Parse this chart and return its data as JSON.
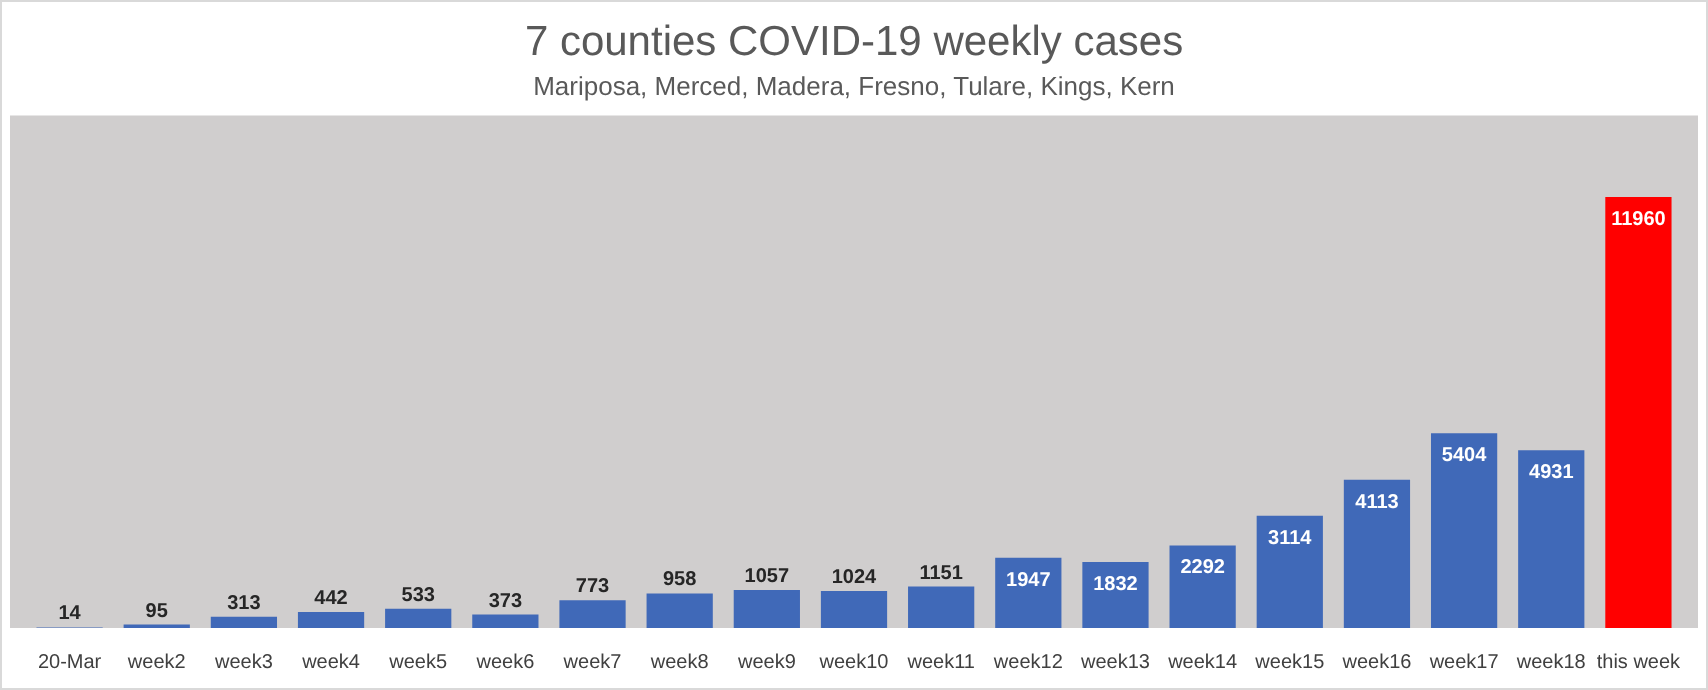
{
  "chart_data": {
    "type": "bar",
    "title": "7 counties COVID-19 weekly cases",
    "subtitle": "Mariposa, Merced, Madera, Fresno, Tulare, Kings, Kern",
    "categories": [
      "20-Mar",
      "week2",
      "week3",
      "week4",
      "week5",
      "week6",
      "week7",
      "week8",
      "week9",
      "week10",
      "week11",
      "week12",
      "week13",
      "week14",
      "week15",
      "week16",
      "week17",
      "week18",
      "this week"
    ],
    "values": [
      14,
      95,
      313,
      442,
      533,
      373,
      773,
      958,
      1057,
      1024,
      1151,
      1947,
      1832,
      2292,
      3114,
      4113,
      5404,
      4931,
      11960
    ],
    "colors": [
      "#4069b8",
      "#4069b8",
      "#4069b8",
      "#4069b8",
      "#4069b8",
      "#4069b8",
      "#4069b8",
      "#4069b8",
      "#4069b8",
      "#4069b8",
      "#4069b8",
      "#4069b8",
      "#4069b8",
      "#4069b8",
      "#4069b8",
      "#4069b8",
      "#4069b8",
      "#4069b8",
      "#ff0000"
    ],
    "data_labels": true,
    "grid": false,
    "legend": false
  }
}
